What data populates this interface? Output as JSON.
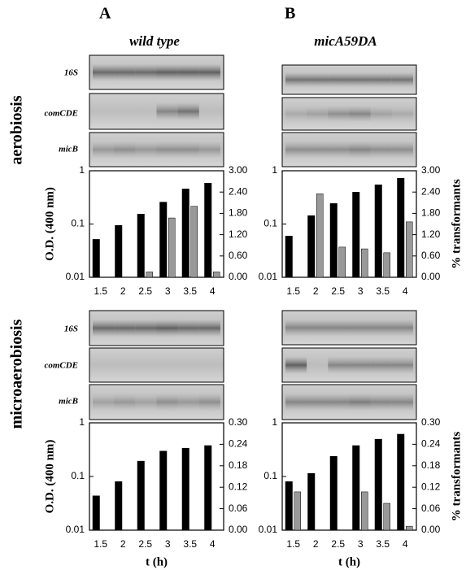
{
  "figure": {
    "panel_labels": [
      "A",
      "B"
    ],
    "strains": [
      "wild type",
      "micA59DA"
    ],
    "conditions": [
      "aerobiosis",
      "microaerobiosis"
    ],
    "blot_labels": [
      "16S",
      "comCDE",
      "micB"
    ]
  },
  "chart_data": [
    {
      "type": "bar",
      "categories": [
        "1.5",
        "2",
        "2.5",
        "3",
        "3.5",
        "4"
      ],
      "ylabel": "O.D. (400 nm)",
      "yscale": "log",
      "ylim": [
        0.01,
        1
      ],
      "yticks": [
        0.01,
        0.1,
        1
      ],
      "y2lim": [
        0,
        3
      ],
      "y2ticks": [
        {
          "value": 0,
          "label": "0.00"
        },
        {
          "value": 0.6,
          "label": "0.60"
        },
        {
          "value": 1.2,
          "label": "1.20"
        },
        {
          "value": 1.8,
          "label": "1.80"
        },
        {
          "value": 2.4,
          "label": "2.40"
        },
        {
          "value": 3,
          "label": "3.00"
        }
      ],
      "series": [
        {
          "color": "#000000",
          "values": [
            0.052,
            0.095,
            0.155,
            0.26,
            0.46,
            0.59
          ]
        },
        {
          "color": "#999999",
          "axis": "y2",
          "values": [
            0,
            0,
            0.15,
            1.67,
            2.0,
            0.15
          ]
        }
      ]
    },
    {
      "type": "bar",
      "categories": [
        "1.5",
        "2",
        "2.5",
        "3",
        "3.5",
        "4"
      ],
      "y2label": "% transformants",
      "yscale": "log",
      "ylim": [
        0.01,
        1
      ],
      "yticks": [
        0.01,
        0.1,
        1
      ],
      "y2lim": [
        0,
        3
      ],
      "y2ticks": [
        {
          "value": 0,
          "label": "0.00"
        },
        {
          "value": 0.6,
          "label": "0.60"
        },
        {
          "value": 1.2,
          "label": "1.20"
        },
        {
          "value": 1.8,
          "label": "1.80"
        },
        {
          "value": 2.4,
          "label": "2.40"
        },
        {
          "value": 3,
          "label": "3.00"
        }
      ],
      "series": [
        {
          "color": "#000000",
          "values": [
            0.06,
            0.145,
            0.245,
            0.4,
            0.55,
            0.73
          ]
        },
        {
          "color": "#999999",
          "axis": "y2",
          "values": [
            0,
            2.35,
            0.85,
            0.8,
            0.69,
            1.56
          ]
        }
      ]
    },
    {
      "type": "bar",
      "categories": [
        "1.5",
        "2",
        "2.5",
        "3",
        "3.5",
        "4"
      ],
      "xlabel": "t (h)",
      "ylabel": "O.D. (400 nm)",
      "yscale": "log",
      "ylim": [
        0.01,
        1
      ],
      "yticks": [
        0.01,
        0.1,
        1
      ],
      "y2lim": [
        0,
        0.3
      ],
      "y2ticks": [
        {
          "value": 0,
          "label": "0.00"
        },
        {
          "value": 0.06,
          "label": "0.06"
        },
        {
          "value": 0.12,
          "label": "0.12"
        },
        {
          "value": 0.18,
          "label": "0.18"
        },
        {
          "value": 0.24,
          "label": "0.24"
        },
        {
          "value": 0.3,
          "label": "0.30"
        }
      ],
      "series": [
        {
          "color": "#000000",
          "values": [
            0.044,
            0.081,
            0.195,
            0.3,
            0.34,
            0.38
          ]
        },
        {
          "color": "#999999",
          "axis": "y2",
          "values": [
            0,
            0,
            0,
            0,
            0,
            0
          ]
        }
      ]
    },
    {
      "type": "bar",
      "categories": [
        "1.5",
        "2",
        "2.5",
        "3",
        "3.5",
        "4"
      ],
      "xlabel": "t (h)",
      "y2label": "% transformants",
      "yscale": "log",
      "ylim": [
        0.01,
        1
      ],
      "yticks": [
        0.01,
        0.1,
        1
      ],
      "y2lim": [
        0,
        0.3
      ],
      "y2ticks": [
        {
          "value": 0,
          "label": "0.00"
        },
        {
          "value": 0.06,
          "label": "0.06"
        },
        {
          "value": 0.12,
          "label": "0.12"
        },
        {
          "value": 0.18,
          "label": "0.18"
        },
        {
          "value": 0.24,
          "label": "0.24"
        },
        {
          "value": 0.3,
          "label": "0.30"
        }
      ],
      "series": [
        {
          "color": "#000000",
          "values": [
            0.081,
            0.115,
            0.24,
            0.38,
            0.5,
            0.62
          ]
        },
        {
          "color": "#999999",
          "axis": "y2",
          "values": [
            0.107,
            0,
            0,
            0.107,
            0.075,
            0.011
          ]
        }
      ]
    }
  ]
}
